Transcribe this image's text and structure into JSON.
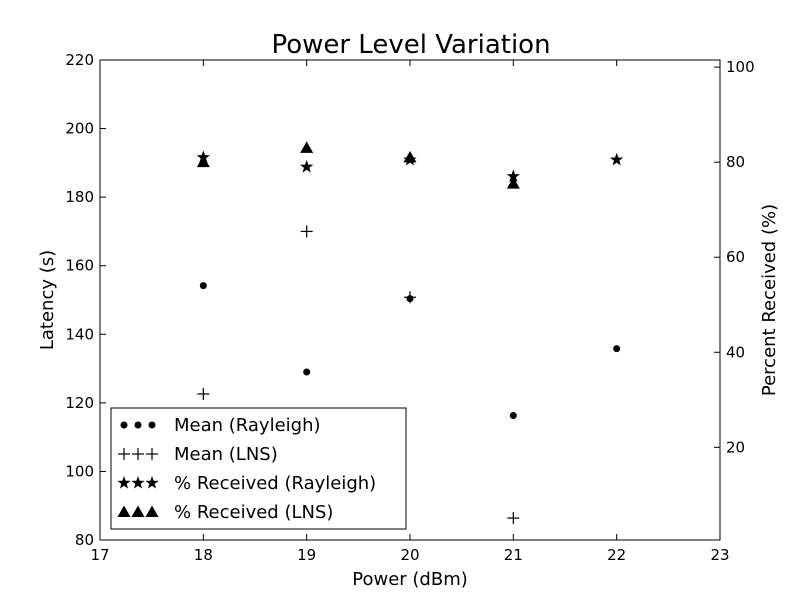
{
  "chart_data": {
    "type": "scatter",
    "title": "Power Level Variation",
    "xlabel": "Power (dBm)",
    "ylabel": "Latency (s)",
    "y2label": "Percent Received (%)",
    "xlim": [
      17,
      23
    ],
    "ylim": [
      80,
      220
    ],
    "y2lim": [
      0.5,
      101.5
    ],
    "xticks": [
      "17",
      "18",
      "19",
      "20",
      "21",
      "22",
      "23"
    ],
    "yticks": [
      "80",
      "100",
      "120",
      "140",
      "160",
      "180",
      "200",
      "220"
    ],
    "y2ticks": [
      "20",
      "40",
      "60",
      "80",
      "100"
    ],
    "grid": false,
    "legend_position": "lower-left",
    "series": [
      {
        "name": "Mean (Rayleigh)",
        "marker": "circle",
        "axis": "left",
        "x": [
          18,
          19,
          20,
          21,
          22
        ],
        "y": [
          154.2,
          129.0,
          150.4,
          116.3,
          135.8
        ]
      },
      {
        "name": "Mean (LNS)",
        "marker": "plus",
        "axis": "left",
        "x": [
          18,
          19,
          20,
          21
        ],
        "y": [
          122.6,
          170.0,
          150.8,
          86.4
        ]
      },
      {
        "name": "% Received (Rayleigh)",
        "marker": "star",
        "axis": "right",
        "x": [
          18,
          19,
          20,
          21,
          22
        ],
        "y": [
          81.0,
          79.0,
          80.5,
          77.0,
          80.5
        ]
      },
      {
        "name": "% Received (LNS)",
        "marker": "triangle",
        "axis": "right",
        "x": [
          18,
          19,
          20,
          21
        ],
        "y": [
          80.0,
          83.0,
          81.0,
          75.5
        ]
      }
    ]
  }
}
